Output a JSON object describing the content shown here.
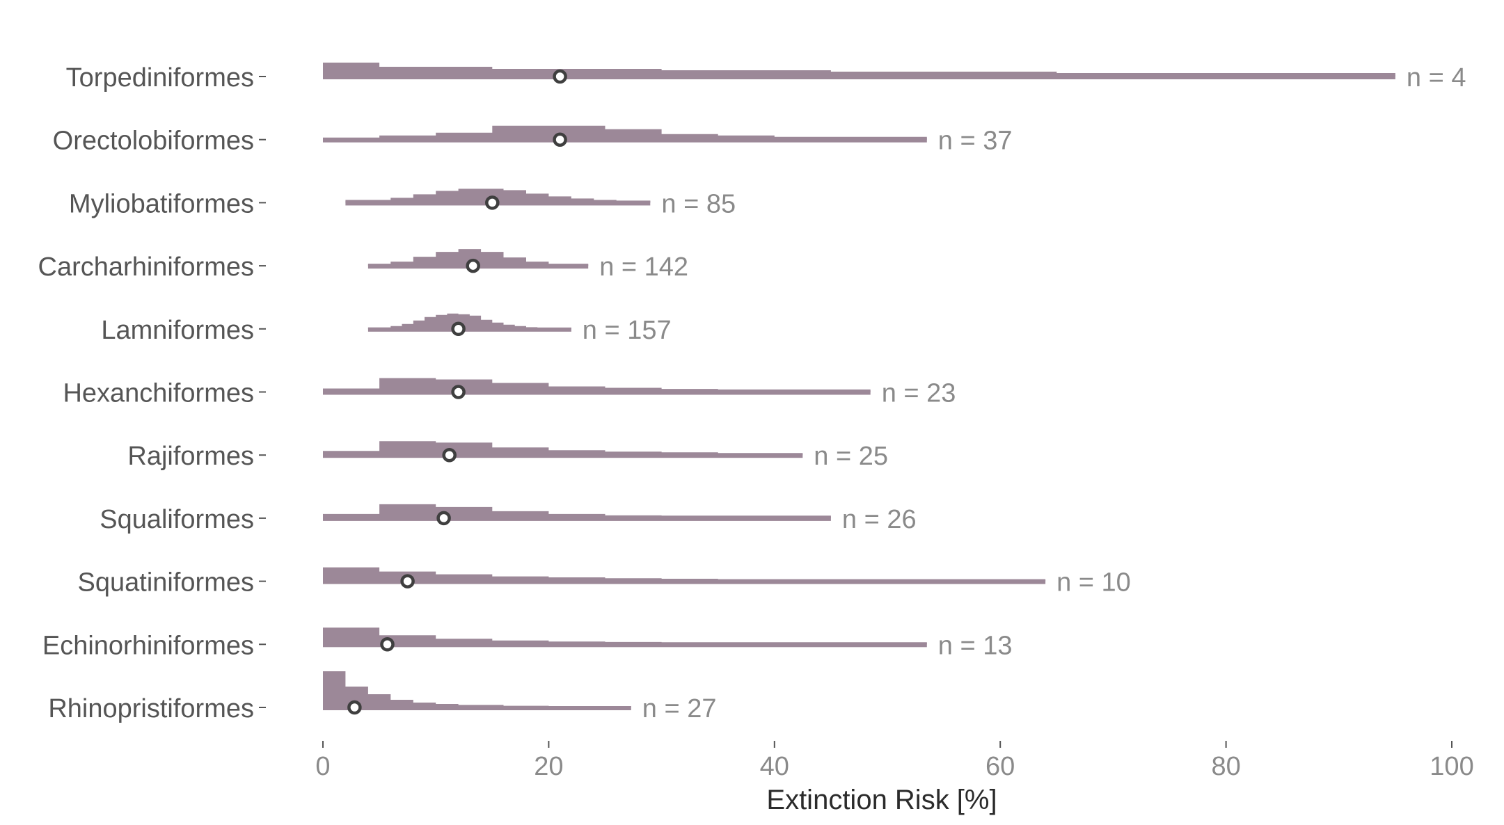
{
  "chart_data": {
    "type": "histogram",
    "xlabel": "Extinction Risk [%]",
    "xlim": [
      0,
      100
    ],
    "xticks": [
      "0",
      "20",
      "40",
      "60",
      "80",
      "100"
    ],
    "grid": false,
    "colors": {
      "histogram_fill": "#9c8898",
      "label_text": "#555555",
      "count_text": "#8a8a8a",
      "marker_stroke": "#3f3f3f",
      "marker_fill": "#ffffff"
    },
    "series": [
      {
        "name": "Torpediniformes",
        "n_label": "n = 4",
        "mean": 21,
        "max": 95,
        "bins": [
          [
            0,
            5,
            1.0
          ],
          [
            5,
            15,
            0.7
          ],
          [
            15,
            30,
            0.55
          ],
          [
            30,
            45,
            0.45
          ],
          [
            45,
            65,
            0.35
          ],
          [
            65,
            95,
            0.25
          ]
        ]
      },
      {
        "name": "Orectolobiformes",
        "n_label": "n = 37",
        "mean": 21,
        "max": 53.5,
        "bins": [
          [
            0,
            5,
            0.15
          ],
          [
            5,
            10,
            0.3
          ],
          [
            10,
            15,
            0.5
          ],
          [
            15,
            25,
            1.0
          ],
          [
            25,
            30,
            0.75
          ],
          [
            30,
            35,
            0.4
          ],
          [
            35,
            40,
            0.3
          ],
          [
            40,
            53.5,
            0.2
          ]
        ]
      },
      {
        "name": "Myliobatiformes",
        "n_label": "n = 85",
        "mean": 15,
        "max": 29,
        "bins": [
          [
            2,
            6,
            0.2
          ],
          [
            6,
            8,
            0.35
          ],
          [
            8,
            10,
            0.6
          ],
          [
            10,
            12,
            0.85
          ],
          [
            12,
            16,
            1.0
          ],
          [
            16,
            18,
            0.9
          ],
          [
            18,
            20,
            0.65
          ],
          [
            20,
            22,
            0.45
          ],
          [
            22,
            24,
            0.3
          ],
          [
            24,
            26,
            0.2
          ],
          [
            26,
            29,
            0.15
          ]
        ]
      },
      {
        "name": "Carcharhiniformes",
        "n_label": "n = 142",
        "mean": 13.3,
        "max": 23.5,
        "bins": [
          [
            4,
            6,
            0.15
          ],
          [
            6,
            8,
            0.3
          ],
          [
            8,
            10,
            0.65
          ],
          [
            10,
            12,
            1.0
          ],
          [
            12,
            14,
            1.2
          ],
          [
            14,
            16,
            1.0
          ],
          [
            16,
            18,
            0.6
          ],
          [
            18,
            20,
            0.3
          ],
          [
            20,
            23.5,
            0.15
          ]
        ]
      },
      {
        "name": "Lamniformes",
        "n_label": "n = 157",
        "mean": 12,
        "max": 22,
        "bins": [
          [
            4,
            6,
            0.1
          ],
          [
            6,
            7,
            0.2
          ],
          [
            7,
            8,
            0.35
          ],
          [
            8,
            9,
            0.6
          ],
          [
            9,
            10,
            0.85
          ],
          [
            10,
            11,
            1.0
          ],
          [
            11,
            12,
            1.1
          ],
          [
            12,
            13,
            1.05
          ],
          [
            13,
            14,
            0.95
          ],
          [
            14,
            15,
            0.65
          ],
          [
            15,
            16,
            0.45
          ],
          [
            16,
            17,
            0.3
          ],
          [
            17,
            18,
            0.2
          ],
          [
            18,
            19,
            0.12
          ],
          [
            19,
            22,
            0.08
          ]
        ]
      },
      {
        "name": "Hexanchiformes",
        "n_label": "n = 23",
        "mean": 12,
        "max": 48.5,
        "bins": [
          [
            0,
            5,
            0.25
          ],
          [
            5,
            10,
            1.0
          ],
          [
            10,
            15,
            0.9
          ],
          [
            15,
            20,
            0.65
          ],
          [
            20,
            25,
            0.4
          ],
          [
            25,
            30,
            0.3
          ],
          [
            30,
            35,
            0.22
          ],
          [
            35,
            48.5,
            0.18
          ]
        ]
      },
      {
        "name": "Rajiformes",
        "n_label": "n = 25",
        "mean": 11.2,
        "max": 42.5,
        "bins": [
          [
            0,
            5,
            0.3
          ],
          [
            5,
            10,
            1.0
          ],
          [
            10,
            15,
            0.9
          ],
          [
            15,
            20,
            0.55
          ],
          [
            20,
            25,
            0.35
          ],
          [
            25,
            30,
            0.25
          ],
          [
            30,
            35,
            0.2
          ],
          [
            35,
            42.5,
            0.15
          ]
        ]
      },
      {
        "name": "Squaliformes",
        "n_label": "n = 26",
        "mean": 10.7,
        "max": 45,
        "bins": [
          [
            0,
            5,
            0.3
          ],
          [
            5,
            10,
            1.0
          ],
          [
            10,
            15,
            0.8
          ],
          [
            15,
            20,
            0.5
          ],
          [
            20,
            25,
            0.3
          ],
          [
            25,
            30,
            0.2
          ],
          [
            30,
            45,
            0.18
          ]
        ]
      },
      {
        "name": "Squatiniformes",
        "n_label": "n = 10",
        "mean": 7.5,
        "max": 64,
        "bins": [
          [
            0,
            5,
            1.0
          ],
          [
            5,
            10,
            0.7
          ],
          [
            10,
            15,
            0.5
          ],
          [
            15,
            20,
            0.35
          ],
          [
            20,
            25,
            0.28
          ],
          [
            25,
            30,
            0.22
          ],
          [
            30,
            35,
            0.18
          ],
          [
            35,
            64,
            0.15
          ]
        ]
      },
      {
        "name": "Echinorhiniformes",
        "n_label": "n = 13",
        "mean": 5.7,
        "max": 53.5,
        "bins": [
          [
            0,
            5,
            1.2
          ],
          [
            5,
            10,
            0.65
          ],
          [
            10,
            15,
            0.4
          ],
          [
            15,
            20,
            0.28
          ],
          [
            20,
            25,
            0.2
          ],
          [
            25,
            30,
            0.17
          ],
          [
            30,
            53.5,
            0.15
          ]
        ]
      },
      {
        "name": "Rhinopristiformes",
        "n_label": "n = 27",
        "mean": 2.8,
        "max": 27.3,
        "bins": [
          [
            0,
            2,
            2.6
          ],
          [
            2,
            4,
            1.5
          ],
          [
            4,
            6,
            0.95
          ],
          [
            6,
            8,
            0.55
          ],
          [
            8,
            10,
            0.35
          ],
          [
            10,
            12,
            0.25
          ],
          [
            12,
            16,
            0.18
          ],
          [
            16,
            20,
            0.12
          ],
          [
            20,
            27.3,
            0.08
          ]
        ]
      }
    ]
  }
}
